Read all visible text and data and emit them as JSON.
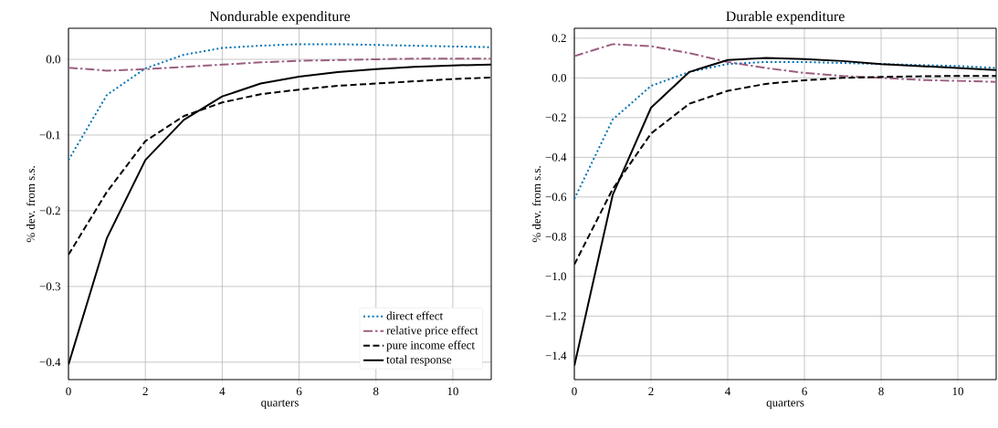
{
  "chart_data": [
    {
      "type": "line",
      "title": "Nondurable expenditure",
      "xlabel": "quarters",
      "ylabel": "% dev. from s.s.",
      "x": [
        0,
        1,
        2,
        3,
        4,
        5,
        6,
        7,
        8,
        9,
        10,
        11
      ],
      "xlim": [
        0,
        11
      ],
      "xticks": [
        0,
        2,
        4,
        6,
        8,
        10
      ],
      "ylim": [
        -0.423,
        0.041
      ],
      "yticks": [
        {
          "value": -0.4,
          "label": "−0.4"
        },
        {
          "value": -0.3,
          "label": "−0.3"
        },
        {
          "value": -0.2,
          "label": "−0.2"
        },
        {
          "value": -0.1,
          "label": "−0.1"
        },
        {
          "value": 0,
          "label": "0.0"
        }
      ],
      "grid": true,
      "legend": "bottom right",
      "series": [
        {
          "name": "direct effect",
          "color": "#0072b2",
          "line_style": "dotted",
          "values": [
            -0.133,
            -0.047,
            -0.012,
            0.006,
            0.015,
            0.018,
            0.02,
            0.02,
            0.019,
            0.018,
            0.017,
            0.016
          ]
        },
        {
          "name": "relative price effect",
          "color": "#9b5f80",
          "line_style": "dashdot",
          "values": [
            -0.011,
            -0.015,
            -0.013,
            -0.01,
            -0.007,
            -0.004,
            -0.002,
            -0.001,
            0.0,
            0.001,
            0.001,
            0.001
          ]
        },
        {
          "name": "pure income effect",
          "color": "#000000",
          "line_style": "dashed",
          "values": [
            -0.258,
            -0.175,
            -0.108,
            -0.075,
            -0.057,
            -0.046,
            -0.04,
            -0.035,
            -0.032,
            -0.029,
            -0.026,
            -0.024
          ]
        },
        {
          "name": "total response",
          "color": "#000000",
          "line_style": "solid",
          "values": [
            -0.403,
            -0.236,
            -0.133,
            -0.08,
            -0.049,
            -0.032,
            -0.023,
            -0.017,
            -0.013,
            -0.01,
            -0.008,
            -0.007
          ]
        }
      ]
    },
    {
      "type": "line",
      "title": "Durable expenditure",
      "xlabel": "quarters",
      "ylabel": "% dev. from s.s.",
      "x": [
        0,
        1,
        2,
        3,
        4,
        5,
        6,
        7,
        8,
        9,
        10,
        11
      ],
      "xlim": [
        0,
        11
      ],
      "xticks": [
        0,
        2,
        4,
        6,
        8,
        10
      ],
      "ylim": [
        -1.52,
        0.25
      ],
      "yticks": [
        {
          "value": -1.4,
          "label": "−1.4"
        },
        {
          "value": -1.2,
          "label": "−1.2"
        },
        {
          "value": -1.0,
          "label": "−1.0"
        },
        {
          "value": -0.8,
          "label": "−0.8"
        },
        {
          "value": -0.6,
          "label": "−0.6"
        },
        {
          "value": -0.4,
          "label": "−0.4"
        },
        {
          "value": -0.2,
          "label": "−0.2"
        },
        {
          "value": 0,
          "label": "0.0"
        },
        {
          "value": 0.2,
          "label": "0.2"
        }
      ],
      "grid": true,
      "legend": false,
      "series": [
        {
          "color": "#0072b2",
          "line_style": "dotted",
          "values": [
            -0.61,
            -0.21,
            -0.04,
            0.03,
            0.07,
            0.08,
            0.08,
            0.075,
            0.07,
            0.065,
            0.06,
            0.05
          ]
        },
        {
          "color": "#9b5f80",
          "line_style": "dashdot",
          "values": [
            0.11,
            0.17,
            0.16,
            0.125,
            0.08,
            0.05,
            0.025,
            0.01,
            0.0,
            -0.01,
            -0.015,
            -0.02
          ]
        },
        {
          "color": "#000000",
          "line_style": "dashed",
          "values": [
            -0.94,
            -0.56,
            -0.28,
            -0.13,
            -0.065,
            -0.03,
            -0.012,
            0.0,
            0.005,
            0.008,
            0.01,
            0.01
          ]
        },
        {
          "color": "#000000",
          "line_style": "solid",
          "values": [
            -1.45,
            -0.59,
            -0.15,
            0.03,
            0.09,
            0.1,
            0.095,
            0.085,
            0.07,
            0.06,
            0.05,
            0.04
          ]
        }
      ]
    }
  ]
}
